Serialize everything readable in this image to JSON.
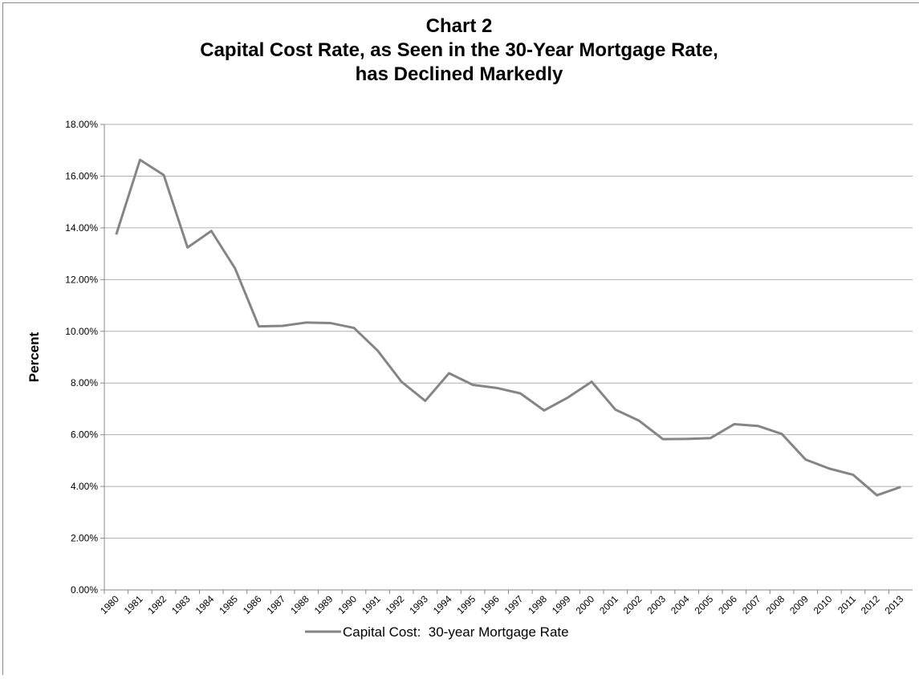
{
  "chart_data": {
    "type": "line",
    "title": [
      "Chart 2",
      "Capital Cost Rate, as Seen in the 30-Year Mortgage Rate,",
      "has Declined Markedly"
    ],
    "ylabel": "Percent",
    "categories": [
      "1980",
      "1981",
      "1982",
      "1983",
      "1984",
      "1985",
      "1986",
      "1987",
      "1988",
      "1989",
      "1990",
      "1991",
      "1992",
      "1993",
      "1994",
      "1995",
      "1996",
      "1997",
      "1998",
      "1999",
      "2000",
      "2001",
      "2002",
      "2003",
      "2004",
      "2005",
      "2006",
      "2007",
      "2008",
      "2009",
      "2010",
      "2011",
      "2012",
      "2013"
    ],
    "series": [
      {
        "name": "Capital Cost:  30-year Mortgage Rate",
        "color": "#858585",
        "values": [
          13.74,
          16.63,
          16.04,
          13.24,
          13.88,
          12.43,
          10.19,
          10.21,
          10.34,
          10.32,
          10.13,
          9.25,
          8.05,
          7.31,
          8.38,
          7.93,
          7.81,
          7.6,
          6.94,
          7.44,
          8.05,
          6.97,
          6.54,
          5.83,
          5.84,
          5.87,
          6.41,
          6.34,
          6.03,
          5.04,
          4.69,
          4.45,
          3.66,
          3.98
        ]
      }
    ],
    "ylim": [
      0,
      18
    ],
    "yticks": [
      {
        "value": 0,
        "label": "0.00%"
      },
      {
        "value": 2,
        "label": "2.00%"
      },
      {
        "value": 4,
        "label": "4.00%"
      },
      {
        "value": 6,
        "label": "6.00%"
      },
      {
        "value": 8,
        "label": "8.00%"
      },
      {
        "value": 10,
        "label": "10.00%"
      },
      {
        "value": 12,
        "label": "12.00%"
      },
      {
        "value": 14,
        "label": "14.00%"
      },
      {
        "value": 16,
        "label": "16.00%"
      },
      {
        "value": 18,
        "label": "18.00%"
      }
    ],
    "grid": true,
    "legend": "bottom"
  }
}
